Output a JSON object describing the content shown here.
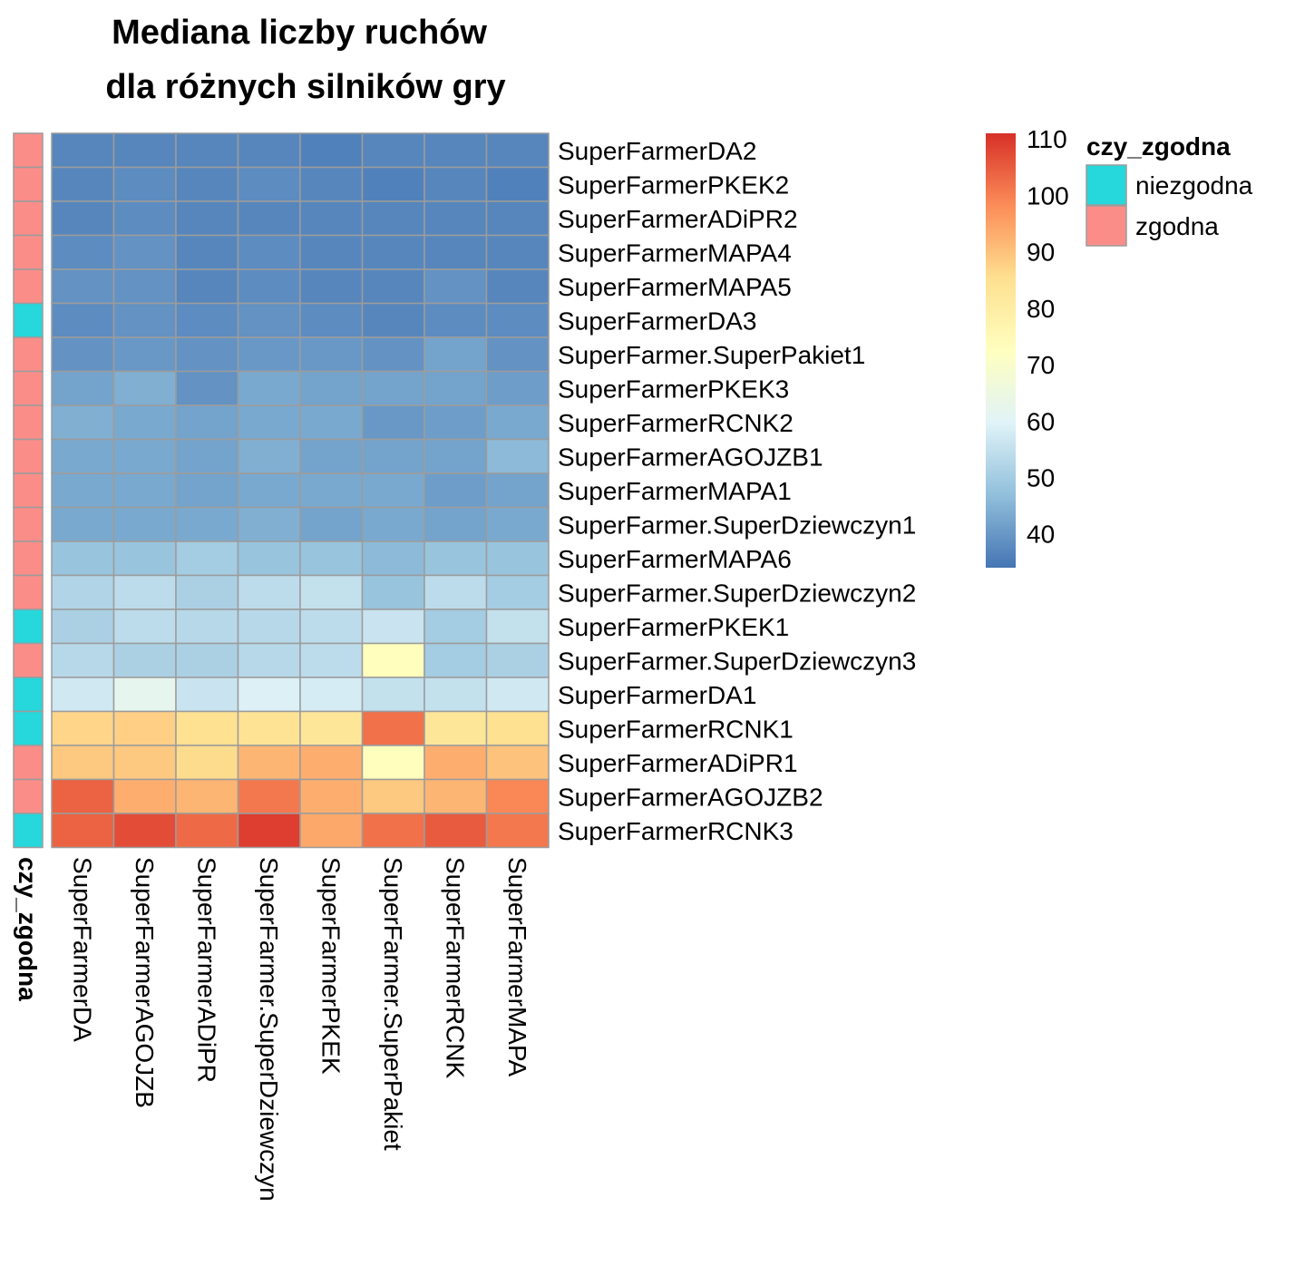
{
  "chart_data": {
    "type": "heatmap",
    "title": [
      "Mediana liczby ruchów",
      "dla różnych silników gry"
    ],
    "rows": [
      "SuperFarmerDA2",
      "SuperFarmerPKEK2",
      "SuperFarmerADiPR2",
      "SuperFarmerMAPA4",
      "SuperFarmerMAPA5",
      "SuperFarmerDA3",
      "SuperFarmer.SuperPakiet1",
      "SuperFarmerPKEK3",
      "SuperFarmerRCNK2",
      "SuperFarmerAGOJZB1",
      "SuperFarmerMAPA1",
      "SuperFarmer.SuperDziewczyn1",
      "SuperFarmerMAPA6",
      "SuperFarmer.SuperDziewczyn2",
      "SuperFarmerPKEK1",
      "SuperFarmer.SuperDziewczyn3",
      "SuperFarmerDA1",
      "SuperFarmerRCNK1",
      "SuperFarmerADiPR1",
      "SuperFarmerAGOJZB2",
      "SuperFarmerRCNK3"
    ],
    "columns": [
      "SuperFarmerDA",
      "SuperFarmerAGOJZB",
      "SuperFarmerADiPR",
      "SuperFarmer.SuperDziewczyn",
      "SuperFarmerPKEK",
      "SuperFarmer.SuperPakiet",
      "SuperFarmerRCNK",
      "SuperFarmerMAPA"
    ],
    "values": [
      [
        37,
        37,
        37,
        37,
        36,
        37,
        37,
        37
      ],
      [
        37,
        38,
        37,
        38,
        37,
        36,
        37,
        36
      ],
      [
        37,
        38,
        37,
        37,
        37,
        37,
        37,
        37
      ],
      [
        38,
        39,
        37,
        38,
        37,
        37,
        37,
        37
      ],
      [
        39,
        39,
        37,
        38,
        37,
        37,
        39,
        37
      ],
      [
        38,
        39,
        38,
        39,
        38,
        37,
        38,
        38
      ],
      [
        39,
        40,
        39,
        40,
        40,
        39,
        42,
        39
      ],
      [
        42,
        44,
        39,
        43,
        42,
        42,
        42,
        41
      ],
      [
        44,
        43,
        42,
        43,
        43,
        40,
        41,
        43
      ],
      [
        43,
        43,
        42,
        44,
        42,
        42,
        42,
        46
      ],
      [
        43,
        43,
        42,
        43,
        43,
        43,
        41,
        42
      ],
      [
        43,
        43,
        43,
        44,
        42,
        43,
        42,
        43
      ],
      [
        48,
        48,
        50,
        48,
        48,
        46,
        48,
        48
      ],
      [
        52,
        54,
        51,
        54,
        55,
        48,
        54,
        50
      ],
      [
        51,
        54,
        53,
        53,
        54,
        56,
        50,
        55
      ],
      [
        53,
        51,
        51,
        53,
        54,
        73,
        50,
        51
      ],
      [
        57,
        62,
        56,
        59,
        58,
        55,
        55,
        57
      ],
      [
        87,
        88,
        85,
        84,
        83,
        102,
        83,
        85
      ],
      [
        89,
        89,
        86,
        92,
        93,
        73,
        93,
        90
      ],
      [
        104,
        93,
        92,
        101,
        93,
        89,
        92,
        99
      ],
      [
        104,
        107,
        103,
        109,
        94,
        102,
        105,
        101
      ]
    ],
    "annotation": {
      "name": "czy_zgodna",
      "values": [
        "zgodna",
        "zgodna",
        "zgodna",
        "zgodna",
        "zgodna",
        "niezgodna",
        "zgodna",
        "zgodna",
        "zgodna",
        "zgodna",
        "zgodna",
        "zgodna",
        "zgodna",
        "zgodna",
        "niezgodna",
        "zgodna",
        "niezgodna",
        "niezgodna",
        "zgodna",
        "zgodna",
        "niezgodna"
      ],
      "levels": [
        "niezgodna",
        "zgodna"
      ],
      "colors": {
        "niezgodna": "#26D7DB",
        "zgodna": "#FB8D89"
      }
    },
    "colorbar": {
      "ticks": [
        40,
        50,
        60,
        70,
        80,
        90,
        100,
        110
      ],
      "range": [
        34,
        111
      ],
      "palette": [
        "#4575B4",
        "#91BFDB",
        "#E0F3F8",
        "#FFFFBF",
        "#FEE090",
        "#FC8D59",
        "#D73027"
      ]
    },
    "cell_border": "#9C9C9C"
  }
}
